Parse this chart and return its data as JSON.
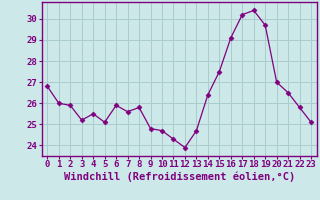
{
  "x": [
    0,
    1,
    2,
    3,
    4,
    5,
    6,
    7,
    8,
    9,
    10,
    11,
    12,
    13,
    14,
    15,
    16,
    17,
    18,
    19,
    20,
    21,
    22,
    23
  ],
  "y": [
    26.8,
    26.0,
    25.9,
    25.2,
    25.5,
    25.1,
    25.9,
    25.6,
    25.8,
    24.8,
    24.7,
    24.3,
    23.9,
    24.7,
    26.4,
    27.5,
    29.1,
    30.2,
    30.4,
    29.7,
    27.0,
    26.5,
    25.8,
    25.1
  ],
  "line_color": "#800080",
  "marker": "D",
  "marker_size": 2.5,
  "bg_color": "#cce8e8",
  "grid_color": "#aacccc",
  "xlabel": "Windchill (Refroidissement éolien,°C)",
  "ylim": [
    23.5,
    30.8
  ],
  "xlim": [
    -0.5,
    23.5
  ],
  "yticks": [
    24,
    25,
    26,
    27,
    28,
    29,
    30
  ],
  "xticks": [
    0,
    1,
    2,
    3,
    4,
    5,
    6,
    7,
    8,
    9,
    10,
    11,
    12,
    13,
    14,
    15,
    16,
    17,
    18,
    19,
    20,
    21,
    22,
    23
  ],
  "xtick_labels": [
    "0",
    "1",
    "2",
    "3",
    "4",
    "5",
    "6",
    "7",
    "8",
    "9",
    "10",
    "11",
    "12",
    "13",
    "14",
    "15",
    "16",
    "17",
    "18",
    "19",
    "20",
    "21",
    "22",
    "23"
  ],
  "axis_color": "#800080",
  "tick_color": "#800080",
  "label_fontsize": 7.5,
  "tick_fontsize": 6.5
}
